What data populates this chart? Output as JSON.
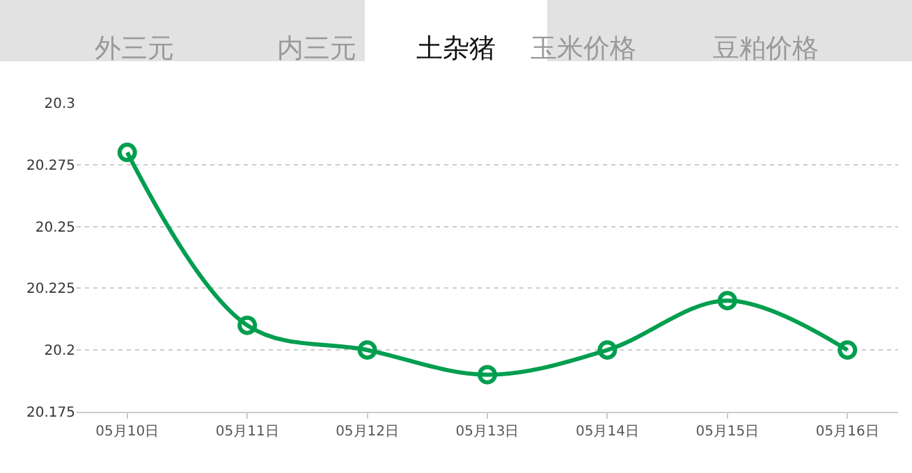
{
  "chart_data": {
    "type": "line",
    "annotations": [
      "外三元",
      "内三元",
      "土杂猪",
      "玉米价格",
      "豆粕价格"
    ],
    "categories": [
      "05月10日",
      "05月11日",
      "05月12日",
      "05月13日",
      "05月14日",
      "05月15日",
      "05月16日"
    ],
    "series": [
      {
        "color": "#009e4f",
        "values": [
          20.28,
          20.21,
          20.2,
          20.19,
          20.2,
          20.22,
          20.2
        ]
      }
    ],
    "ylim": [
      20.175,
      20.3
    ],
    "yticks": [
      20.175,
      20.2,
      20.225,
      20.25,
      20.275,
      20.3
    ],
    "grid": "y",
    "marker": "circle",
    "line_style": "solid"
  }
}
